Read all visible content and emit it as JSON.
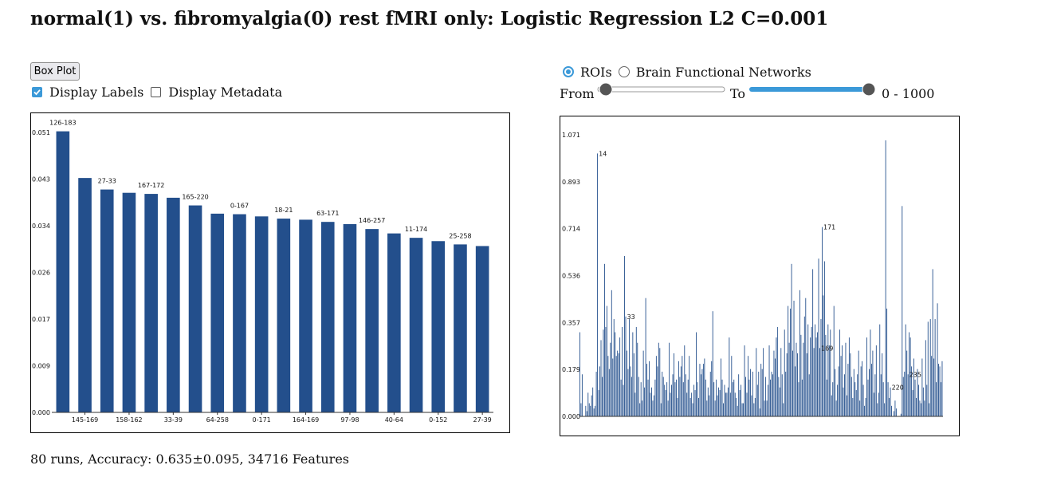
{
  "title": "normal(1) vs. fibromyalgia(0) rest fMRI only: Logistic Regression L2 C=0.001",
  "controls": {
    "box_plot_label": "Box Plot",
    "display_labels": {
      "label": "Display Labels",
      "checked": true
    },
    "display_metadata": {
      "label": "Display Metadata",
      "checked": false
    },
    "radio_rois": {
      "label": "ROIs",
      "selected": true
    },
    "radio_networks": {
      "label": "Brain Functional Networks",
      "selected": false
    },
    "from_label": "From",
    "to_label": "To",
    "range_text": "0 - 1000",
    "range_from": 0,
    "range_to": 1000,
    "range_max": 1000
  },
  "colors": {
    "bar": "#234f8c",
    "accent": "#3b99d8"
  },
  "footer": "80 runs, Accuracy: 0.635±0.095, 34716 Features",
  "chart_data": [
    {
      "type": "bar",
      "yticks": [
        "0.000",
        "0.009",
        "0.017",
        "0.026",
        "0.034",
        "0.043",
        "0.051"
      ],
      "ylim": [
        0,
        0.051
      ],
      "values": [
        0.0512,
        0.0427,
        0.0406,
        0.04,
        0.0398,
        0.0391,
        0.0377,
        0.0362,
        0.0361,
        0.0357,
        0.0353,
        0.0351,
        0.0347,
        0.0343,
        0.0334,
        0.0326,
        0.0318,
        0.0312,
        0.0306,
        0.0303
      ],
      "top_labels": [
        "126-183",
        "",
        "27-33",
        "",
        "167-172",
        "",
        "165-220",
        "",
        "0-167",
        "",
        "18-21",
        "",
        "63-171",
        "",
        "146-257",
        "",
        "11-174",
        "",
        "25-258",
        ""
      ],
      "bottom_labels": [
        "",
        "145-169",
        "",
        "158-162",
        "",
        "33-39",
        "",
        "64-258",
        "",
        "0-171",
        "",
        "164-169",
        "",
        "97-98",
        "",
        "40-64",
        "",
        "0-152",
        "",
        "27-39"
      ]
    },
    {
      "type": "bar",
      "yticks": [
        "0.000",
        "0.179",
        "0.357",
        "0.536",
        "0.714",
        "0.893",
        "1.071"
      ],
      "ylim": [
        0,
        1.071
      ],
      "values": [
        0.32,
        0.05,
        0.16,
        0.0,
        0.0,
        0.04,
        0.02,
        0.09,
        0.05,
        0.04,
        0.08,
        0.11,
        0.03,
        0.04,
        0.17,
        1.0,
        0.1,
        0.19,
        0.29,
        0.15,
        0.33,
        0.58,
        0.34,
        0.42,
        0.23,
        0.18,
        0.28,
        0.48,
        0.22,
        0.37,
        0.32,
        0.23,
        0.25,
        0.24,
        0.3,
        0.14,
        0.34,
        0.12,
        0.61,
        0.38,
        0.25,
        0.18,
        0.37,
        0.19,
        0.15,
        0.32,
        0.24,
        0.09,
        0.34,
        0.28,
        0.15,
        0.05,
        0.13,
        0.06,
        0.25,
        0.11,
        0.45,
        0.2,
        0.14,
        0.21,
        0.09,
        0.11,
        0.06,
        0.08,
        0.14,
        0.23,
        0.19,
        0.28,
        0.26,
        0.05,
        0.17,
        0.15,
        0.12,
        0.1,
        0.13,
        0.06,
        0.28,
        0.09,
        0.12,
        0.16,
        0.24,
        0.13,
        0.14,
        0.07,
        0.21,
        0.15,
        0.19,
        0.23,
        0.13,
        0.27,
        0.16,
        0.09,
        0.14,
        0.23,
        0.07,
        0.09,
        0.05,
        0.12,
        0.1,
        0.32,
        0.13,
        0.07,
        0.2,
        0.16,
        0.18,
        0.2,
        0.22,
        0.14,
        0.06,
        0.11,
        0.08,
        0.17,
        0.21,
        0.4,
        0.13,
        0.06,
        0.14,
        0.08,
        0.11,
        0.1,
        0.22,
        0.14,
        0.05,
        0.12,
        0.09,
        0.09,
        0.11,
        0.3,
        0.09,
        0.23,
        0.13,
        0.14,
        0.09,
        0.07,
        0.04,
        0.16,
        0.1,
        0.12,
        0.05,
        0.05,
        0.27,
        0.15,
        0.09,
        0.23,
        0.14,
        0.18,
        0.08,
        0.17,
        0.05,
        0.07,
        0.26,
        0.12,
        0.17,
        0.03,
        0.2,
        0.18,
        0.26,
        0.06,
        0.15,
        0.06,
        0.12,
        0.27,
        0.14,
        0.17,
        0.16,
        0.25,
        0.22,
        0.3,
        0.34,
        0.15,
        0.11,
        0.26,
        0.16,
        0.05,
        0.33,
        0.17,
        0.24,
        0.42,
        0.28,
        0.41,
        0.58,
        0.25,
        0.44,
        0.19,
        0.28,
        0.24,
        0.13,
        0.48,
        0.31,
        0.14,
        0.28,
        0.38,
        0.45,
        0.24,
        0.35,
        0.16,
        0.3,
        0.34,
        0.56,
        0.26,
        0.35,
        0.3,
        0.32,
        0.6,
        0.26,
        0.37,
        0.72,
        0.46,
        0.59,
        0.31,
        0.14,
        0.35,
        0.27,
        0.33,
        0.08,
        0.13,
        0.42,
        0.18,
        0.06,
        0.12,
        0.19,
        0.33,
        0.23,
        0.27,
        0.11,
        0.16,
        0.28,
        0.08,
        0.2,
        0.3,
        0.24,
        0.15,
        0.07,
        0.18,
        0.13,
        0.1,
        0.16,
        0.25,
        0.06,
        0.19,
        0.21,
        0.12,
        0.04,
        0.07,
        0.3,
        0.14,
        0.18,
        0.33,
        0.2,
        0.25,
        0.09,
        0.16,
        0.27,
        0.05,
        0.09,
        0.35,
        0.16,
        0.24,
        0.13,
        0.05,
        1.05,
        0.41,
        0.13,
        0.07,
        0.11,
        0.04,
        0.0,
        0.02,
        0.06,
        0.03,
        0.0,
        0.0,
        0.0,
        0.01,
        0.8,
        0.15,
        0.17,
        0.35,
        0.25,
        0.16,
        0.32,
        0.3,
        0.19,
        0.1,
        0.22,
        0.14,
        0.07,
        0.18,
        0.12,
        0.06,
        0.05,
        0.22,
        0.11,
        0.06,
        0.29,
        0.12,
        0.36,
        0.05,
        0.37,
        0.23,
        0.56,
        0.22,
        0.37,
        0.13,
        0.43,
        0.2,
        0.19,
        0.13,
        0.21
      ],
      "annotations": [
        {
          "index": 15,
          "label": "14"
        },
        {
          "index": 39,
          "label": "33"
        },
        {
          "index": 204,
          "label": "169"
        },
        {
          "index": 206,
          "label": "171"
        },
        {
          "index": 264,
          "label": "220"
        },
        {
          "index": 279,
          "label": "235"
        }
      ]
    }
  ]
}
